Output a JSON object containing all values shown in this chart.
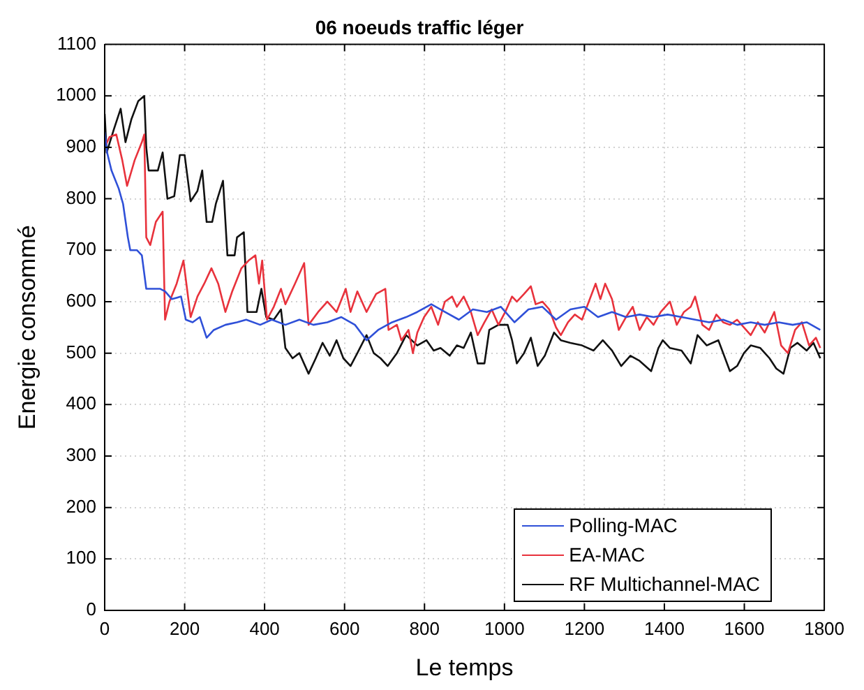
{
  "chart_data": {
    "type": "line",
    "title": "06 noeuds traffic léger",
    "xlabel": "Le temps",
    "ylabel": "Energie consommé",
    "xlim": [
      0,
      1800
    ],
    "xticks": [
      0,
      200,
      400,
      600,
      800,
      1000,
      1200,
      1400,
      1600,
      1800
    ],
    "ylim": [
      0,
      1100
    ],
    "yticks": [
      0,
      100,
      200,
      300,
      400,
      500,
      600,
      700,
      800,
      900,
      1000,
      1100
    ],
    "grid": true,
    "legend": "bottom right",
    "series": [
      {
        "name": "Polling-MAC",
        "color": "#2f50d8",
        "x": [
          0,
          6,
          17,
          35,
          46,
          58,
          64,
          81,
          93,
          104,
          122,
          139,
          151,
          168,
          191,
          203,
          220,
          238,
          255,
          273,
          302,
          331,
          354,
          389,
          418,
          452,
          487,
          522,
          557,
          592,
          626,
          655,
          684,
          719,
          754,
          782,
          817,
          851,
          886,
          921,
          956,
          991,
          1025,
          1060,
          1095,
          1129,
          1165,
          1200,
          1234,
          1269,
          1304,
          1338,
          1373,
          1408,
          1443,
          1477,
          1512,
          1547,
          1582,
          1616,
          1651,
          1686,
          1721,
          1756,
          1790
        ],
        "values": [
          930,
          890,
          855,
          820,
          790,
          725,
          700,
          700,
          690,
          625,
          625,
          625,
          620,
          605,
          610,
          565,
          560,
          570,
          530,
          545,
          555,
          560,
          565,
          555,
          565,
          555,
          565,
          555,
          560,
          570,
          555,
          525,
          545,
          560,
          570,
          580,
          595,
          580,
          565,
          585,
          580,
          590,
          560,
          585,
          590,
          565,
          585,
          590,
          570,
          580,
          570,
          575,
          570,
          575,
          570,
          565,
          560,
          565,
          555,
          560,
          555,
          560,
          555,
          560,
          545
        ]
      },
      {
        "name": "EA-MAC",
        "color": "#e8323c",
        "x": [
          0,
          12,
          29,
          44,
          56,
          75,
          93,
          99,
          104,
          114,
          128,
          145,
          151,
          162,
          180,
          197,
          215,
          232,
          249,
          267,
          284,
          302,
          319,
          342,
          360,
          377,
          386,
          394,
          406,
          423,
          441,
          452,
          476,
          499,
          510,
          534,
          557,
          580,
          603,
          615,
          632,
          655,
          679,
          702,
          710,
          731,
          742,
          760,
          771,
          782,
          799,
          817,
          834,
          851,
          869,
          881,
          898,
          916,
          933,
          950,
          968,
          985,
          1002,
          1019,
          1031,
          1049,
          1066,
          1078,
          1095,
          1112,
          1129,
          1141,
          1159,
          1176,
          1194,
          1211,
          1228,
          1240,
          1252,
          1269,
          1286,
          1304,
          1321,
          1338,
          1356,
          1373,
          1391,
          1414,
          1431,
          1449,
          1466,
          1477,
          1495,
          1512,
          1530,
          1547,
          1564,
          1582,
          1599,
          1616,
          1634,
          1651,
          1675,
          1692,
          1709,
          1727,
          1744,
          1762,
          1779,
          1790
        ],
        "values": [
          900,
          920,
          925,
          875,
          825,
          875,
          910,
          925,
          725,
          710,
          755,
          775,
          565,
          600,
          635,
          680,
          570,
          610,
          635,
          665,
          635,
          580,
          620,
          665,
          680,
          690,
          635,
          680,
          565,
          590,
          625,
          595,
          635,
          675,
          555,
          580,
          600,
          580,
          625,
          580,
          620,
          580,
          615,
          625,
          545,
          555,
          525,
          545,
          500,
          540,
          570,
          590,
          555,
          600,
          610,
          590,
          610,
          580,
          535,
          560,
          585,
          555,
          580,
          610,
          600,
          615,
          630,
          595,
          600,
          585,
          550,
          535,
          560,
          575,
          565,
          600,
          635,
          605,
          635,
          605,
          545,
          570,
          590,
          545,
          570,
          555,
          580,
          600,
          555,
          580,
          590,
          610,
          555,
          545,
          575,
          560,
          555,
          565,
          550,
          535,
          560,
          540,
          580,
          515,
          500,
          545,
          560,
          515,
          530,
          510
        ]
      },
      {
        "name": "RF Multichannel-MAC",
        "color": "#111111",
        "x": [
          0,
          5,
          23,
          40,
          52,
          67,
          84,
          99,
          104,
          110,
          133,
          145,
          157,
          174,
          188,
          200,
          215,
          232,
          244,
          255,
          269,
          278,
          296,
          307,
          325,
          331,
          348,
          357,
          380,
          392,
          404,
          423,
          441,
          452,
          470,
          487,
          510,
          528,
          545,
          563,
          580,
          597,
          615,
          632,
          655,
          673,
          690,
          708,
          731,
          754,
          782,
          805,
          823,
          840,
          863,
          881,
          898,
          916,
          933,
          950,
          962,
          985,
          1008,
          1019,
          1031,
          1049,
          1066,
          1083,
          1101,
          1124,
          1141,
          1165,
          1194,
          1223,
          1246,
          1269,
          1292,
          1315,
          1338,
          1367,
          1385,
          1396,
          1414,
          1443,
          1466,
          1483,
          1506,
          1535,
          1564,
          1582,
          1599,
          1616,
          1640,
          1663,
          1680,
          1698,
          1715,
          1733,
          1756,
          1773,
          1790
        ],
        "values": [
          965,
          890,
          935,
          975,
          910,
          955,
          990,
          1000,
          900,
          855,
          855,
          890,
          800,
          805,
          885,
          885,
          795,
          815,
          855,
          755,
          755,
          790,
          835,
          690,
          690,
          725,
          735,
          580,
          580,
          625,
          570,
          565,
          585,
          510,
          490,
          500,
          460,
          490,
          520,
          495,
          525,
          490,
          475,
          500,
          535,
          500,
          490,
          475,
          500,
          535,
          515,
          525,
          505,
          510,
          495,
          515,
          510,
          540,
          480,
          480,
          545,
          555,
          555,
          525,
          480,
          500,
          530,
          475,
          495,
          540,
          525,
          520,
          515,
          505,
          525,
          505,
          475,
          495,
          485,
          465,
          510,
          525,
          510,
          505,
          480,
          535,
          515,
          525,
          465,
          475,
          500,
          515,
          510,
          490,
          470,
          460,
          510,
          520,
          505,
          520,
          490
        ]
      }
    ]
  }
}
